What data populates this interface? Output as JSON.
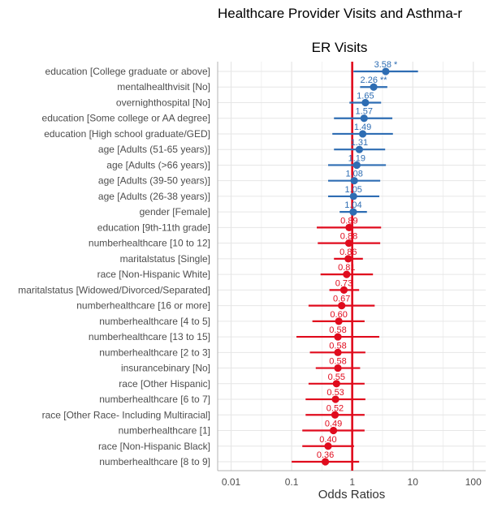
{
  "chart_data": {
    "type": "forest",
    "title": "Healthcare Provider Visits and Asthma-r",
    "subtitle": "ER Visits",
    "xlabel": "Odds Ratios",
    "xscale": "log",
    "xlim": [
      0.006,
      160
    ],
    "xticks": [
      "0.01",
      "0.1",
      "1",
      "10",
      "100"
    ],
    "reference_line": 1,
    "colors": {
      "positive": "#2e6db3",
      "negative": "#e00b1d",
      "reference": "#e00b1d"
    },
    "rows": [
      {
        "label": "education [College graduate or above]",
        "or": 3.58,
        "lo": 1.05,
        "hi": 12.2,
        "text": "3.58 *",
        "dir": "pos"
      },
      {
        "label": "mentalhealthvisit [No]",
        "or": 2.26,
        "lo": 1.35,
        "hi": 3.8,
        "text": "2.26 **",
        "dir": "pos"
      },
      {
        "label": "overnighthospital [No]",
        "or": 1.65,
        "lo": 0.9,
        "hi": 3.0,
        "text": "1.65",
        "dir": "pos"
      },
      {
        "label": "education [Some college or AA degree]",
        "or": 1.57,
        "lo": 0.5,
        "hi": 4.6,
        "text": "1.57",
        "dir": "pos"
      },
      {
        "label": "education [High school graduate/GED]",
        "or": 1.49,
        "lo": 0.47,
        "hi": 4.7,
        "text": "1.49",
        "dir": "pos"
      },
      {
        "label": "age [Adults (51-65 years)]",
        "or": 1.31,
        "lo": 0.5,
        "hi": 3.5,
        "text": "1.31",
        "dir": "pos"
      },
      {
        "label": "age [Adults (>66 years)]",
        "or": 1.19,
        "lo": 0.4,
        "hi": 3.6,
        "text": "1.19",
        "dir": "pos"
      },
      {
        "label": "age [Adults (39-50 years)]",
        "or": 1.08,
        "lo": 0.4,
        "hi": 2.9,
        "text": "1.08",
        "dir": "pos"
      },
      {
        "label": "age [Adults (26-38 years)]",
        "or": 1.05,
        "lo": 0.4,
        "hi": 2.8,
        "text": "1.05",
        "dir": "pos"
      },
      {
        "label": "gender [Female]",
        "or": 1.04,
        "lo": 0.62,
        "hi": 1.75,
        "text": "1.04",
        "dir": "pos"
      },
      {
        "label": "education [9th-11th grade]",
        "or": 0.89,
        "lo": 0.26,
        "hi": 3.0,
        "text": "0.89",
        "dir": "neg"
      },
      {
        "label": "numberhealthcare [10 to 12]",
        "or": 0.88,
        "lo": 0.27,
        "hi": 2.9,
        "text": "0.88",
        "dir": "neg"
      },
      {
        "label": "maritalstatus [Single]",
        "or": 0.86,
        "lo": 0.5,
        "hi": 1.5,
        "text": "0.86",
        "dir": "neg"
      },
      {
        "label": "race [Non-Hispanic White]",
        "or": 0.81,
        "lo": 0.3,
        "hi": 2.2,
        "text": "0.81",
        "dir": "neg"
      },
      {
        "label": "maritalstatus [Widowed/Divorced/Separated]",
        "or": 0.73,
        "lo": 0.42,
        "hi": 1.3,
        "text": "0.73",
        "dir": "neg"
      },
      {
        "label": "numberhealthcare [16 or more]",
        "or": 0.67,
        "lo": 0.19,
        "hi": 2.35,
        "text": "0.67",
        "dir": "neg"
      },
      {
        "label": "numberhealthcare [4 to 5]",
        "or": 0.6,
        "lo": 0.22,
        "hi": 1.6,
        "text": "0.60",
        "dir": "neg"
      },
      {
        "label": "numberhealthcare [13 to 15]",
        "or": 0.58,
        "lo": 0.12,
        "hi": 2.8,
        "text": "0.58",
        "dir": "neg"
      },
      {
        "label": "numberhealthcare [2 to 3]",
        "or": 0.58,
        "lo": 0.2,
        "hi": 1.65,
        "text": "0.58",
        "dir": "neg"
      },
      {
        "label": "insurancebinary [No]",
        "or": 0.58,
        "lo": 0.25,
        "hi": 1.35,
        "text": "0.58",
        "dir": "neg"
      },
      {
        "label": "race [Other Hispanic]",
        "or": 0.55,
        "lo": 0.19,
        "hi": 1.6,
        "text": "0.55",
        "dir": "neg"
      },
      {
        "label": "numberhealthcare [6 to 7]",
        "or": 0.53,
        "lo": 0.17,
        "hi": 1.65,
        "text": "0.53",
        "dir": "neg"
      },
      {
        "label": "race [Other Race- Including Multiracial]",
        "or": 0.52,
        "lo": 0.17,
        "hi": 1.6,
        "text": "0.52",
        "dir": "neg"
      },
      {
        "label": "numberhealthcare [1]",
        "or": 0.49,
        "lo": 0.15,
        "hi": 1.6,
        "text": "0.49",
        "dir": "neg"
      },
      {
        "label": "race [Non-Hispanic Black]",
        "or": 0.4,
        "lo": 0.15,
        "hi": 1.07,
        "text": "0.40",
        "dir": "neg"
      },
      {
        "label": "numberhealthcare [8 to 9]",
        "or": 0.36,
        "lo": 0.1,
        "hi": 1.3,
        "text": "0.36",
        "dir": "neg"
      }
    ]
  }
}
